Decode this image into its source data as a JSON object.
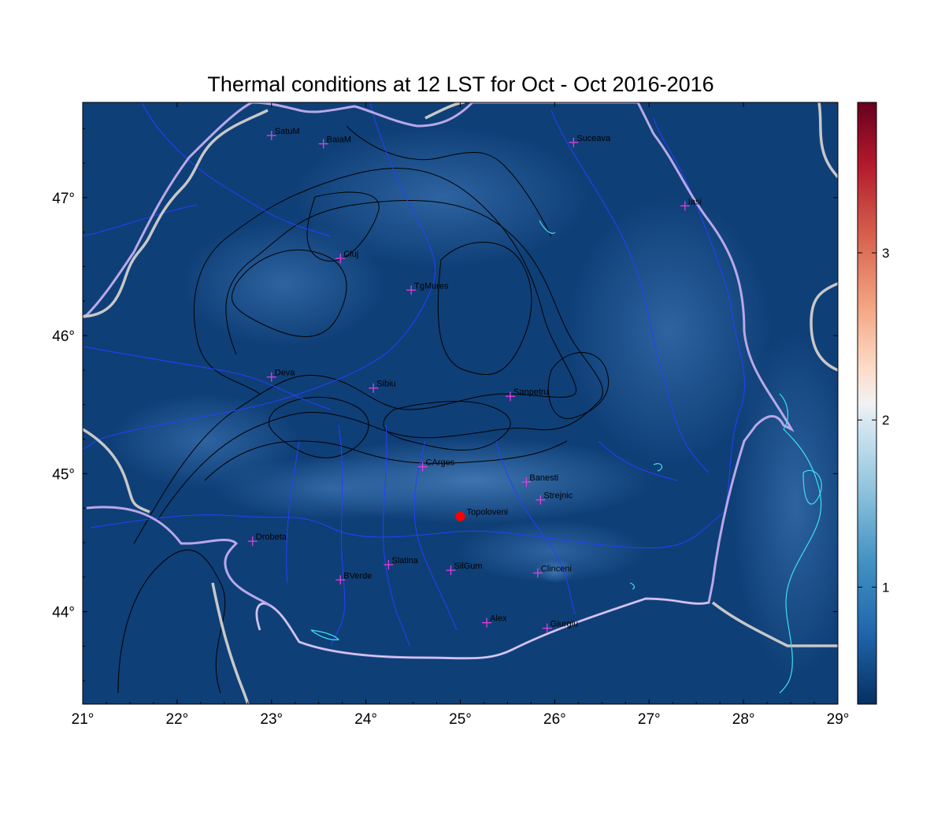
{
  "title": "Thermal conditions at 12 LST for Oct - Oct  2016-2016",
  "map": {
    "lon_range": [
      21,
      29
    ],
    "lat_range": [
      43.33,
      47.69
    ],
    "lon_ticks": [
      {
        "value": 21,
        "label": "21°"
      },
      {
        "value": 22,
        "label": "22°"
      },
      {
        "value": 23,
        "label": "23°"
      },
      {
        "value": 24,
        "label": "24°"
      },
      {
        "value": 25,
        "label": "25°"
      },
      {
        "value": 26,
        "label": "26°"
      },
      {
        "value": 27,
        "label": "27°"
      },
      {
        "value": 28,
        "label": "28°"
      },
      {
        "value": 29,
        "label": "29°"
      }
    ],
    "lat_ticks": [
      {
        "value": 44,
        "label": "44°"
      },
      {
        "value": 45,
        "label": "45°"
      },
      {
        "value": 46,
        "label": "46°"
      },
      {
        "value": 47,
        "label": "47°"
      }
    ],
    "stations": [
      {
        "name": "SatuM",
        "lon": 23.0,
        "lat": 47.45
      },
      {
        "name": "BaiaM",
        "lon": 23.55,
        "lat": 47.39
      },
      {
        "name": "Suceava",
        "lon": 26.2,
        "lat": 47.4
      },
      {
        "name": "Iasi",
        "lon": 27.38,
        "lat": 46.94
      },
      {
        "name": "Cluj",
        "lon": 23.73,
        "lat": 46.56
      },
      {
        "name": "TgMures",
        "lon": 24.48,
        "lat": 46.33
      },
      {
        "name": "Deva",
        "lon": 23.0,
        "lat": 45.7
      },
      {
        "name": "Sibiu",
        "lon": 24.08,
        "lat": 45.62
      },
      {
        "name": "Sanpetru",
        "lon": 25.53,
        "lat": 45.56
      },
      {
        "name": "CArges",
        "lon": 24.6,
        "lat": 45.05
      },
      {
        "name": "Banesti",
        "lon": 25.7,
        "lat": 44.94
      },
      {
        "name": "Strejnic",
        "lon": 25.85,
        "lat": 44.81
      },
      {
        "name": "Drobeta",
        "lon": 22.8,
        "lat": 44.51
      },
      {
        "name": "Slatina",
        "lon": 24.24,
        "lat": 44.34
      },
      {
        "name": "SilGum",
        "lon": 24.9,
        "lat": 44.3
      },
      {
        "name": "Clinceni",
        "lon": 25.82,
        "lat": 44.28
      },
      {
        "name": "BVerde",
        "lon": 23.73,
        "lat": 44.23
      },
      {
        "name": "Alex",
        "lon": 25.28,
        "lat": 43.92
      },
      {
        "name": "Giurgiu",
        "lon": 25.92,
        "lat": 43.88
      }
    ],
    "target": {
      "name": "Topoloveni",
      "lon": 25.0,
      "lat": 44.69
    },
    "colors": {
      "background_field": "#0f3f77",
      "station_marker": "#e040e0",
      "target_marker": "#ff0000",
      "country_border": "#c8c8c8",
      "romania_border": "#b9a8e8",
      "rivers": "#2540ff",
      "coast_lakes": "#3ee0ee",
      "contours": "#000000"
    }
  },
  "colorbar": {
    "colormap": "RdBu_r",
    "ticks": [
      {
        "value": 1,
        "label": "1"
      },
      {
        "value": 2,
        "label": "2"
      },
      {
        "value": 3,
        "label": "3"
      }
    ],
    "range": [
      0.3,
      3.9
    ]
  }
}
